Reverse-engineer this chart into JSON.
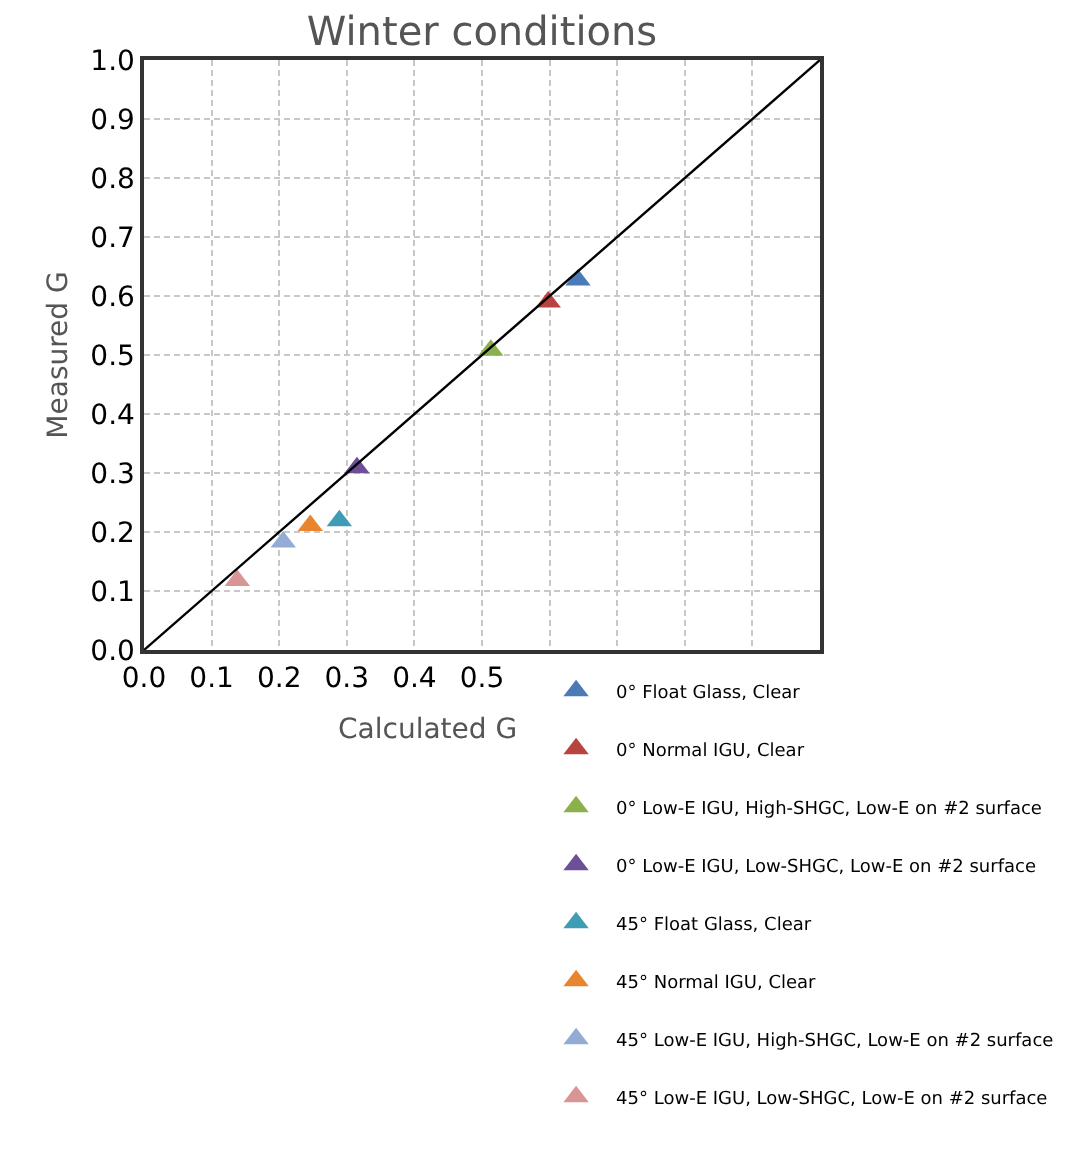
{
  "chart_data": {
    "type": "scatter",
    "title": "Winter conditions",
    "xlabel": "Calculated G",
    "ylabel": "Measured G",
    "xlim": [
      0,
      1
    ],
    "ylim": [
      0,
      1
    ],
    "xticks": [
      {
        "value": 0,
        "label": "0.0"
      },
      0.1,
      0.2,
      0.3,
      0.4,
      0.5,
      {
        "value": 0.6,
        "label": null
      },
      {
        "value": 0.7,
        "label": null
      },
      {
        "value": 0.8,
        "label": null
      },
      {
        "value": 0.9,
        "label": null
      },
      {
        "value": 1.0,
        "label": null
      }
    ],
    "yticks": [
      {
        "value": 0,
        "label": "0.0"
      },
      0.1,
      0.2,
      0.3,
      0.4,
      0.5,
      0.6,
      0.7,
      0.8,
      0.9,
      {
        "value": 1,
        "label": "1.0"
      }
    ],
    "grid": true,
    "legend": "bottom right",
    "marker": "triangle",
    "series": [
      {
        "name": "0° Float Glass, Clear",
        "color": "#4a7ab8",
        "x": [
          0.642
        ],
        "values": [
          0.627
        ]
      },
      {
        "name": "0° Normal IGU, Clear",
        "color": "#b8433f",
        "x": [
          0.598
        ],
        "values": [
          0.59
        ]
      },
      {
        "name": "0° Low-E IGU, High-SHGC, Low-E on #2 surface",
        "color": "#8cb04c",
        "x": [
          0.513
        ],
        "values": [
          0.508
        ]
      },
      {
        "name": "0° Low-E IGU, Low-SHGC, Low-E on #2 surface",
        "color": "#6e4e96",
        "x": [
          0.315
        ],
        "values": [
          0.309
        ]
      },
      {
        "name": "45° Float Glass, Clear",
        "color": "#3e9db4",
        "x": [
          0.289
        ],
        "values": [
          0.219
        ]
      },
      {
        "name": "45° Normal IGU, Clear",
        "color": "#e8852e",
        "x": [
          0.246
        ],
        "values": [
          0.211
        ]
      },
      {
        "name": "45° Low-E IGU, High-SHGC, Low-E on #2 surface",
        "color": "#92acd6",
        "x": [
          0.206
        ],
        "values": [
          0.183
        ]
      },
      {
        "name": "45° Low-E IGU, Low-SHGC, Low-E on #2 surface",
        "color": "#d99494",
        "x": [
          0.138
        ],
        "values": [
          0.118
        ]
      },
      {
        "type": "line",
        "color": "#000000",
        "x": [
          0,
          1
        ],
        "values": [
          0,
          1
        ],
        "marker": "none"
      }
    ]
  }
}
